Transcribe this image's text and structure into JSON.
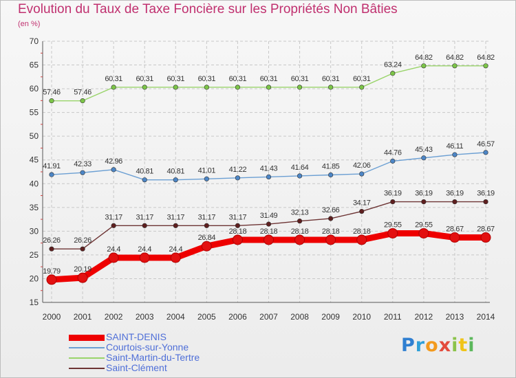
{
  "title": "Evolution du Taux de Taxe Foncière sur les Propriétés Non Bâties",
  "subtitle": "(en %)",
  "logo": {
    "letters": [
      "P",
      "r",
      "o",
      "x",
      "i",
      "t",
      "i"
    ],
    "colors": [
      "#2f7fd1",
      "#2f9fd8",
      "#f39a1d",
      "#e34a3b",
      "#8bc34a",
      "#f0c419",
      "#5cb85c"
    ]
  },
  "chart_data": {
    "type": "line",
    "title": "Evolution du Taux de Taxe Foncière sur les Propriétés Non Bâties",
    "ylabel": "(en %)",
    "ylim": [
      15,
      70
    ],
    "yticks": [
      15,
      20,
      25,
      30,
      35,
      40,
      45,
      50,
      55,
      60,
      65,
      70
    ],
    "grid": true,
    "x": [
      "2000",
      "2001",
      "2002",
      "2003",
      "2004",
      "2005",
      "2006",
      "2007",
      "2008",
      "2009",
      "2010",
      "2011",
      "2012",
      "2013",
      "2014"
    ],
    "series": [
      {
        "name": "SAINT-DENIS",
        "color": "#ee0000",
        "marker": "#e31010",
        "thick": true,
        "values": [
          19.79,
          20.19,
          24.4,
          24.4,
          24.4,
          26.84,
          28.18,
          28.18,
          28.18,
          28.18,
          28.18,
          29.55,
          29.55,
          28.67,
          28.67
        ],
        "labels": [
          "19.79",
          "20.19",
          "24.4",
          "24.4",
          "24.4",
          "26.84",
          "28.18",
          "28.18",
          "28.18",
          "28.18",
          "28.18",
          "29.55",
          "29.55",
          "28.67",
          "28.67"
        ]
      },
      {
        "name": "Courtois-sur-Yonne",
        "color": "#6b9fd3",
        "marker": "#4d86c6",
        "thick": false,
        "values": [
          41.91,
          42.33,
          42.96,
          40.81,
          40.81,
          41.01,
          41.22,
          41.43,
          41.64,
          41.85,
          42.06,
          44.76,
          45.43,
          46.11,
          46.57
        ],
        "labels": [
          "41.91",
          "42.33",
          "42.96",
          "40.81",
          "40.81",
          "41.01",
          "41.22",
          "41.43",
          "41.64",
          "41.85",
          "42.06",
          "44.76",
          "45.43",
          "46.11",
          "46.57"
        ]
      },
      {
        "name": "Saint-Martin-du-Tertre",
        "color": "#99d46a",
        "marker": "#7cc548",
        "thick": false,
        "values": [
          57.46,
          57.46,
          60.31,
          60.31,
          60.31,
          60.31,
          60.31,
          60.31,
          60.31,
          60.31,
          60.31,
          63.24,
          64.82,
          64.82,
          64.82
        ],
        "labels": [
          "57.46",
          "57.46",
          "60.31",
          "60.31",
          "60.31",
          "60.31",
          "60.31",
          "60.31",
          "60.31",
          "60.31",
          "60.31",
          "63.24",
          "64.82",
          "64.82",
          "64.82"
        ]
      },
      {
        "name": "Saint-Clément",
        "color": "#6d3434",
        "marker": "#5e1f1f",
        "thick": false,
        "values": [
          26.26,
          26.26,
          31.17,
          31.17,
          31.17,
          31.17,
          31.17,
          31.49,
          32.13,
          32.66,
          34.17,
          36.19,
          36.19,
          36.19,
          36.19
        ],
        "labels": [
          "26.26",
          "26.26",
          "31.17",
          "31.17",
          "31.17",
          "31.17",
          "31.17",
          "31.49",
          "32.13",
          "32.66",
          "34.17",
          "36.19",
          "36.19",
          "36.19",
          "36.19"
        ]
      }
    ]
  }
}
